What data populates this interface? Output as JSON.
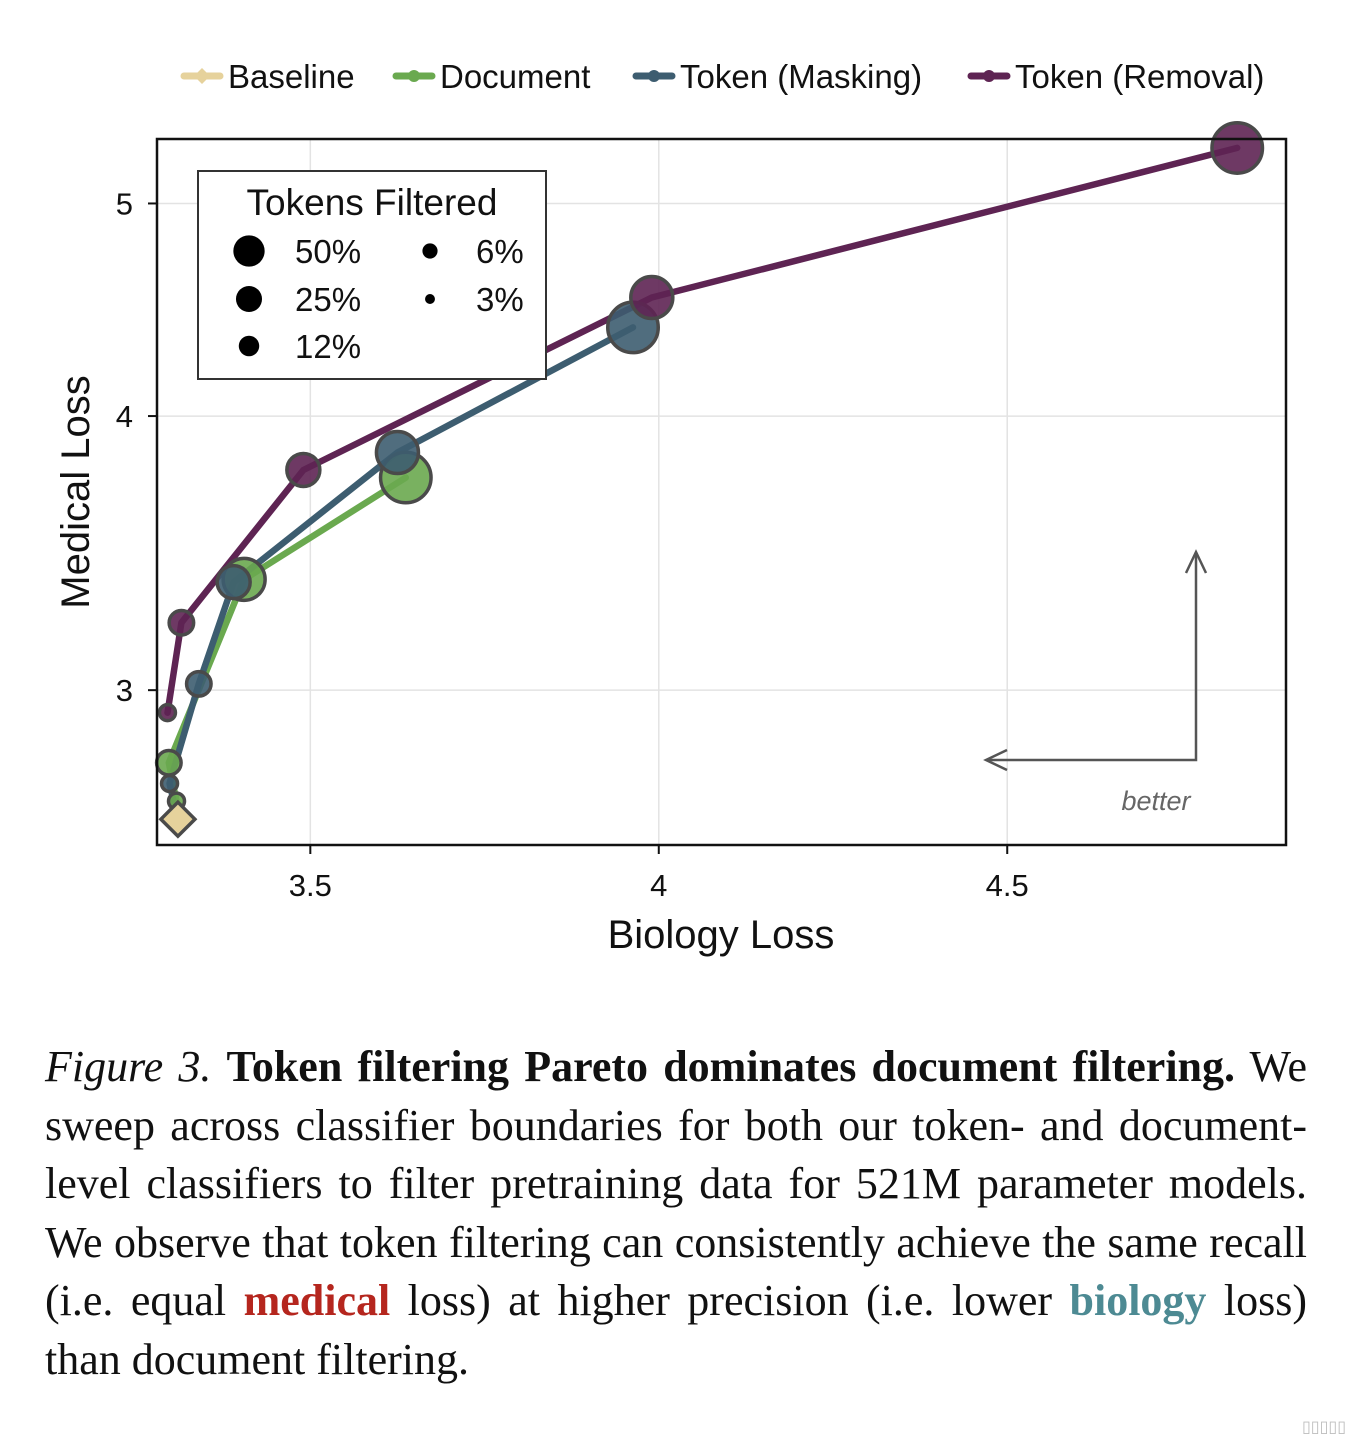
{
  "chart_data": {
    "type": "line",
    "xlabel": "Biology Loss",
    "ylabel": "Medical Loss",
    "xlim": [
      3.28,
      4.9
    ],
    "ylim": [
      2.55,
      5.35
    ],
    "y_scale": "log",
    "x_ticks": [
      3.5,
      4,
      4.5
    ],
    "x_tick_labels": [
      "3.5",
      "4",
      "4.5"
    ],
    "y_ticks": [
      3,
      4,
      5
    ],
    "y_tick_labels": [
      "3",
      "4",
      "5"
    ],
    "grid": true,
    "legend": {
      "placement": "top",
      "entries": [
        "Baseline",
        "Document",
        "Token (Masking)",
        "Token (Removal)"
      ]
    },
    "size_legend": {
      "title": "Tokens Filtered",
      "placement": "top-left",
      "entries": [
        {
          "label": "50%",
          "pct": 50
        },
        {
          "label": "25%",
          "pct": 25
        },
        {
          "label": "12%",
          "pct": 12
        },
        {
          "label": "6%",
          "pct": 6
        },
        {
          "label": "3%",
          "pct": 3
        }
      ]
    },
    "series": [
      {
        "name": "Baseline",
        "color": "#e6d29c",
        "marker": "diamond",
        "points": [
          {
            "x": 3.31,
            "y": 2.62
          }
        ]
      },
      {
        "name": "Document",
        "color": "#6aa94f",
        "marker": "circle",
        "points": [
          {
            "x": 3.31,
            "y": 2.62,
            "pct": 0
          },
          {
            "x": 3.308,
            "y": 2.67,
            "pct": 3
          },
          {
            "x": 3.297,
            "y": 2.78,
            "pct": 6
          },
          {
            "x": 3.405,
            "y": 3.37,
            "pct": 25
          },
          {
            "x": 3.637,
            "y": 3.75,
            "pct": 50
          }
        ]
      },
      {
        "name": "Token (Masking)",
        "color": "#3d5d70",
        "marker": "circle",
        "points": [
          {
            "x": 3.31,
            "y": 2.62,
            "pct": 0
          },
          {
            "x": 3.298,
            "y": 2.72,
            "pct": 3
          },
          {
            "x": 3.34,
            "y": 3.02,
            "pct": 6
          },
          {
            "x": 3.39,
            "y": 3.36,
            "pct": 12
          },
          {
            "x": 3.625,
            "y": 3.85,
            "pct": 25
          },
          {
            "x": 3.963,
            "y": 4.39,
            "pct": 50
          }
        ]
      },
      {
        "name": "Token (Removal)",
        "color": "#5e2453",
        "marker": "circle",
        "points": [
          {
            "x": 3.295,
            "y": 2.93,
            "pct": 3
          },
          {
            "x": 3.315,
            "y": 3.22,
            "pct": 6
          },
          {
            "x": 3.49,
            "y": 3.78,
            "pct": 12
          },
          {
            "x": 3.99,
            "y": 4.53,
            "pct": 25
          },
          {
            "x": 4.83,
            "y": 5.3,
            "pct": 50
          }
        ]
      }
    ],
    "annotations": [
      {
        "text": "better",
        "direction": "down-left",
        "placement": "bottom-right"
      }
    ]
  },
  "caption": {
    "label": "Figure 3.",
    "title": "Token filtering Pareto dominates document filtering.",
    "part1": "We sweep across classifier boundaries for both our token- and document-level classifiers to filter pretraining data for 521M parameter models. We observe that token filtering can consistently achieve the same recall (i.e. equal ",
    "medical_word": "medical",
    "part2": " loss) at higher precision (i.e. lower ",
    "biology_word": "biology",
    "part3": " loss) than document filtering."
  },
  "colors": {
    "medical_highlight": "#b5261e",
    "biology_highlight": "#4d8a93"
  }
}
